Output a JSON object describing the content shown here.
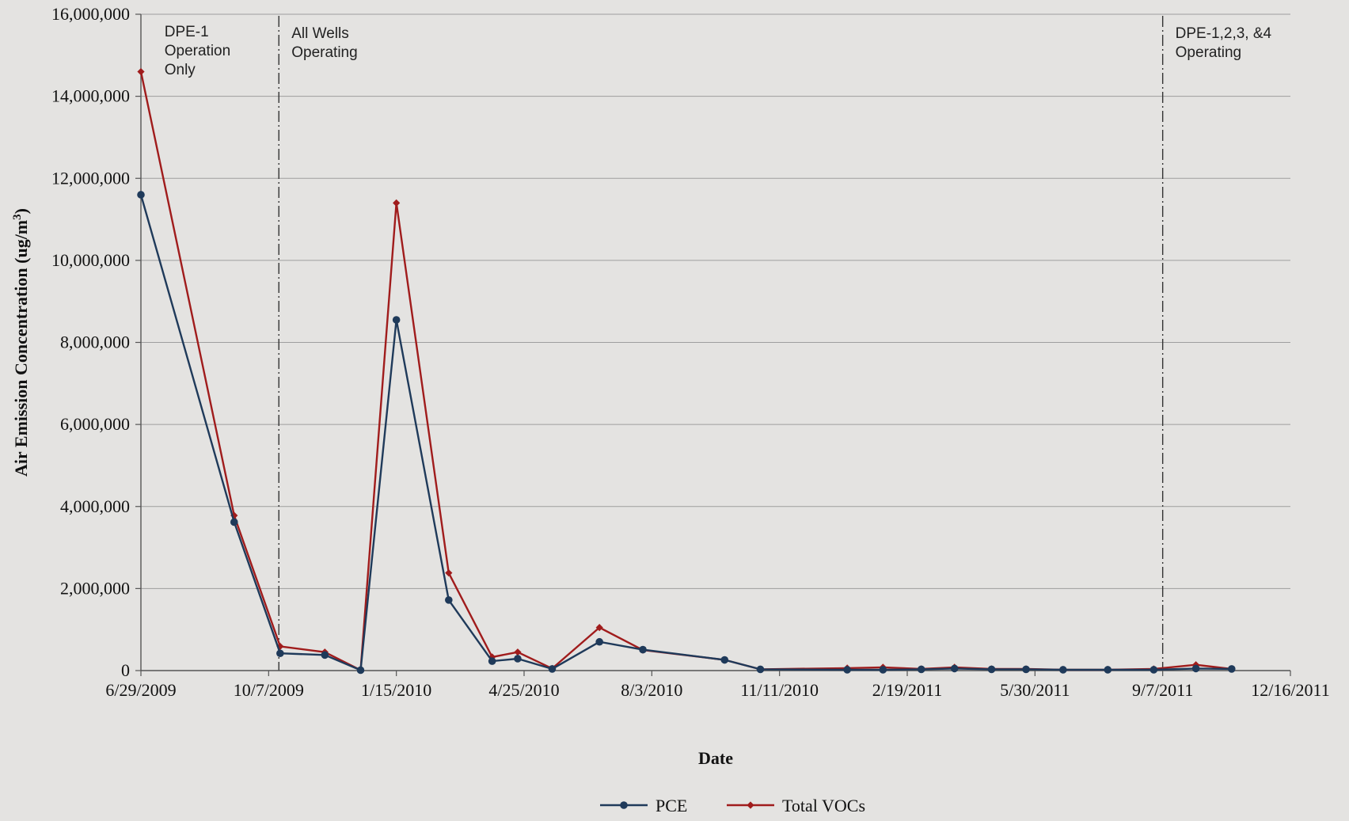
{
  "chart_data": {
    "type": "line",
    "xlabel": "Date",
    "ylabel": "Air Emission Concentration (ug/m",
    "ylabel_sup": "3",
    "ylabel_close": ")",
    "ylim": [
      0,
      16000000
    ],
    "yticks": [
      0,
      2000000,
      4000000,
      6000000,
      8000000,
      10000000,
      12000000,
      14000000,
      16000000
    ],
    "ytick_labels": [
      "0",
      "2,000,000",
      "4,000,000",
      "6,000,000",
      "8,000,000",
      "10,000,000",
      "12,000,000",
      "14,000,000",
      "16,000,000"
    ],
    "xlim": [
      "2009-06-29",
      "2011-12-16"
    ],
    "xticks": [
      "2009-06-29",
      "2009-10-07",
      "2010-01-15",
      "2010-04-25",
      "2010-08-03",
      "2010-11-11",
      "2011-02-19",
      "2011-05-30",
      "2011-09-07",
      "2011-12-16"
    ],
    "xtick_labels": [
      "6/29/2009",
      "10/7/2009",
      "1/15/2010",
      "4/25/2010",
      "8/3/2010",
      "11/11/2010",
      "2/19/2011",
      "5/30/2011",
      "9/7/2011",
      "12/16/2011"
    ],
    "grid": "horizontal",
    "legend_position": "bottom-center",
    "series": [
      {
        "name": "PCE",
        "color": "#1f3a5a",
        "points": [
          [
            "2009-06-29",
            11600000
          ],
          [
            "2009-09-10",
            3620000
          ],
          [
            "2009-10-16",
            420000
          ],
          [
            "2009-11-20",
            380000
          ],
          [
            "2009-12-18",
            10000
          ],
          [
            "2010-01-15",
            8550000
          ],
          [
            "2010-02-25",
            1720000
          ],
          [
            "2010-03-31",
            230000
          ],
          [
            "2010-04-20",
            290000
          ],
          [
            "2010-05-17",
            40000
          ],
          [
            "2010-06-23",
            700000
          ],
          [
            "2010-07-27",
            510000
          ],
          [
            "2010-09-29",
            260000
          ],
          [
            "2010-10-27",
            30000
          ],
          [
            "2011-01-03",
            20000
          ],
          [
            "2011-01-31",
            20000
          ],
          [
            "2011-03-02",
            30000
          ],
          [
            "2011-03-28",
            50000
          ],
          [
            "2011-04-26",
            30000
          ],
          [
            "2011-05-23",
            30000
          ],
          [
            "2011-06-21",
            20000
          ],
          [
            "2011-07-26",
            20000
          ],
          [
            "2011-08-31",
            20000
          ],
          [
            "2011-10-03",
            50000
          ],
          [
            "2011-10-31",
            40000
          ]
        ]
      },
      {
        "name": "Total VOCs",
        "color": "#a01c1c",
        "points": [
          [
            "2009-06-29",
            14600000
          ],
          [
            "2009-09-10",
            3780000
          ],
          [
            "2009-10-16",
            590000
          ],
          [
            "2009-11-20",
            450000
          ],
          [
            "2009-12-18",
            10000
          ],
          [
            "2010-01-15",
            11400000
          ],
          [
            "2010-02-25",
            2380000
          ],
          [
            "2010-03-31",
            330000
          ],
          [
            "2010-04-20",
            450000
          ],
          [
            "2010-05-17",
            50000
          ],
          [
            "2010-06-23",
            1050000
          ],
          [
            "2010-07-27",
            500000
          ],
          [
            "2010-09-29",
            260000
          ],
          [
            "2010-10-27",
            30000
          ],
          [
            "2011-01-03",
            60000
          ],
          [
            "2011-01-31",
            80000
          ],
          [
            "2011-03-02",
            40000
          ],
          [
            "2011-03-28",
            80000
          ],
          [
            "2011-04-26",
            40000
          ],
          [
            "2011-05-23",
            40000
          ],
          [
            "2011-06-21",
            20000
          ],
          [
            "2011-07-26",
            20000
          ],
          [
            "2011-08-31",
            40000
          ],
          [
            "2011-10-03",
            140000
          ],
          [
            "2011-10-31",
            40000
          ]
        ]
      }
    ],
    "vertical_markers": [
      {
        "date": "2009-10-15",
        "label_lines": [
          "All Wells",
          "Operating"
        ],
        "label_side": "right"
      },
      {
        "date": "2011-09-07",
        "label_lines": [
          "DPE-1,2,3, &4",
          "Operating"
        ],
        "label_side": "right"
      }
    ],
    "annotations": [
      {
        "date": "2009-07-10",
        "label_lines": [
          "DPE-1",
          "Operation",
          "Only"
        ]
      }
    ]
  }
}
